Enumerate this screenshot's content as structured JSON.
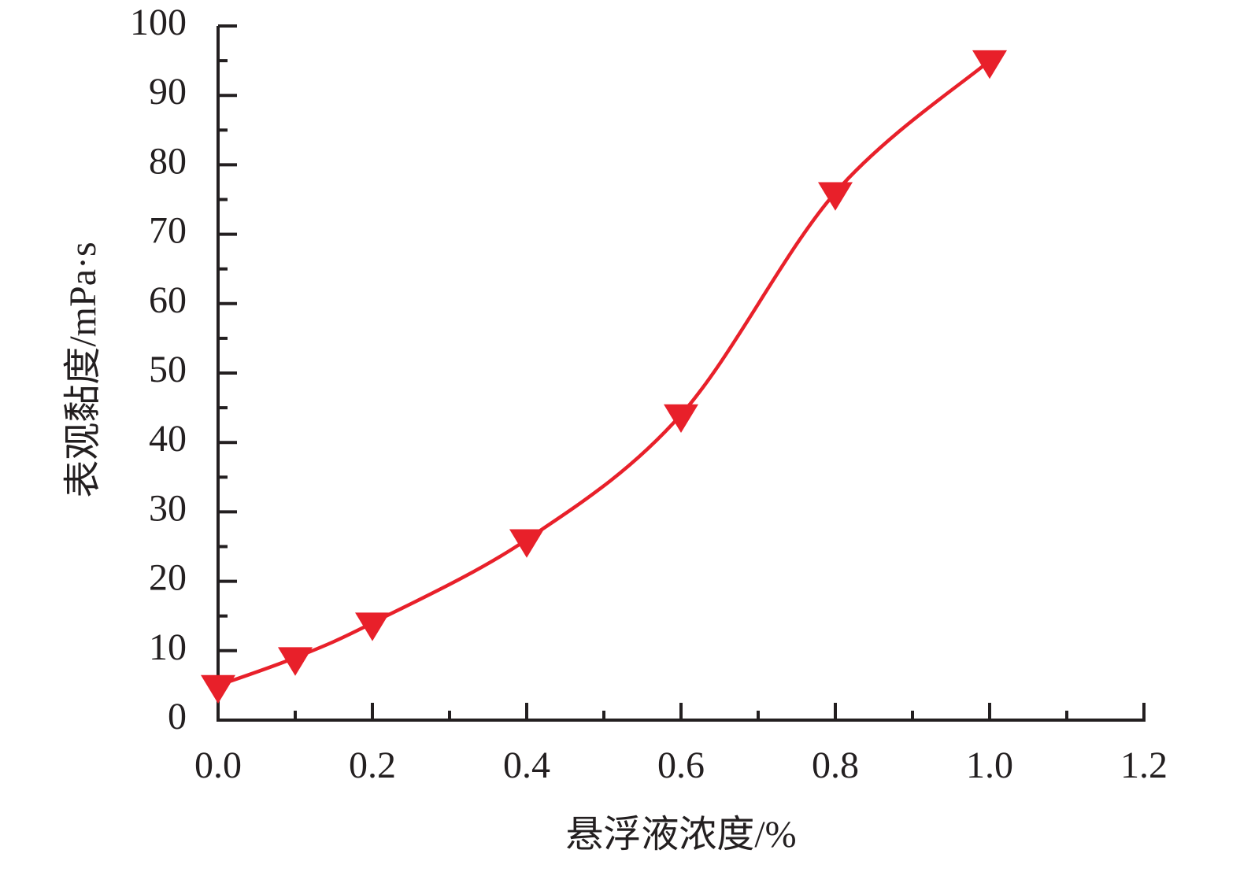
{
  "chart_data": {
    "type": "line",
    "x_label": "悬浮液浓度/%",
    "y_label": "表观黏度/mPa·s",
    "x": [
      0,
      0.1,
      0.2,
      0.4,
      0.6,
      0.8,
      1.0
    ],
    "series": [
      {
        "color": "#e8202a",
        "marker": "triangle-down",
        "smooth": true,
        "values": [
          5,
          9,
          14,
          26,
          44,
          76,
          95
        ]
      }
    ],
    "xlim": [
      0,
      1.2
    ],
    "xticks": [
      {
        "value": 0,
        "label": "0.0"
      },
      0.2,
      0.4,
      0.6,
      0.8,
      {
        "value": 1,
        "label": "1.0"
      },
      1.2
    ],
    "ylim": [
      0,
      100
    ],
    "yticks": [
      0,
      10,
      20,
      30,
      40,
      50,
      60,
      70,
      80,
      90,
      100
    ],
    "minor_ticks": true,
    "grid": false
  }
}
